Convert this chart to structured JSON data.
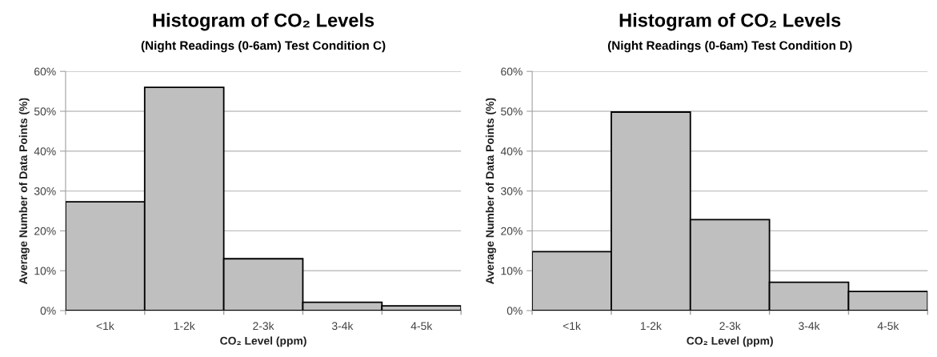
{
  "chart_data": [
    {
      "type": "bar",
      "title": "Histogram of CO₂ Levels",
      "subtitle": "(Night Readings (0-6am) Test Condition C)",
      "xlabel": "CO₂ Level (ppm)",
      "ylabel": "Average Number of Data Points (%)",
      "categories": [
        "<1k",
        "1-2k",
        "2-3k",
        "3-4k",
        "4-5k"
      ],
      "values": [
        27.3,
        56,
        13,
        2.1,
        1.2
      ],
      "color": "#bfbfbf",
      "ylim": [
        0,
        60
      ],
      "yticks": [
        {
          "value": 0,
          "label": "0%"
        },
        {
          "value": 10,
          "label": "10%"
        },
        {
          "value": 20,
          "label": "20%"
        },
        {
          "value": 30,
          "label": "30%"
        },
        {
          "value": 40,
          "label": "40%"
        },
        {
          "value": 50,
          "label": "50%"
        },
        {
          "value": 60,
          "label": "60%"
        }
      ],
      "grid": "y"
    },
    {
      "type": "bar",
      "title": "Histogram of CO₂ Levels",
      "subtitle": "(Night Readings (0-6am) Test Condition D)",
      "xlabel": "CO₂ Level (ppm)",
      "ylabel": "Average Number of Data Points (%)",
      "categories": [
        "<1k",
        "1-2k",
        "2-3k",
        "3-4k",
        "4-5k"
      ],
      "values": [
        14.8,
        49.8,
        22.8,
        7.1,
        4.8
      ],
      "color": "#bfbfbf",
      "ylim": [
        0,
        60
      ],
      "yticks": [
        {
          "value": 0,
          "label": "0%"
        },
        {
          "value": 10,
          "label": "10%"
        },
        {
          "value": 20,
          "label": "20%"
        },
        {
          "value": 30,
          "label": "30%"
        },
        {
          "value": 40,
          "label": "40%"
        },
        {
          "value": 50,
          "label": "50%"
        },
        {
          "value": 60,
          "label": "60%"
        }
      ],
      "grid": "y"
    }
  ]
}
